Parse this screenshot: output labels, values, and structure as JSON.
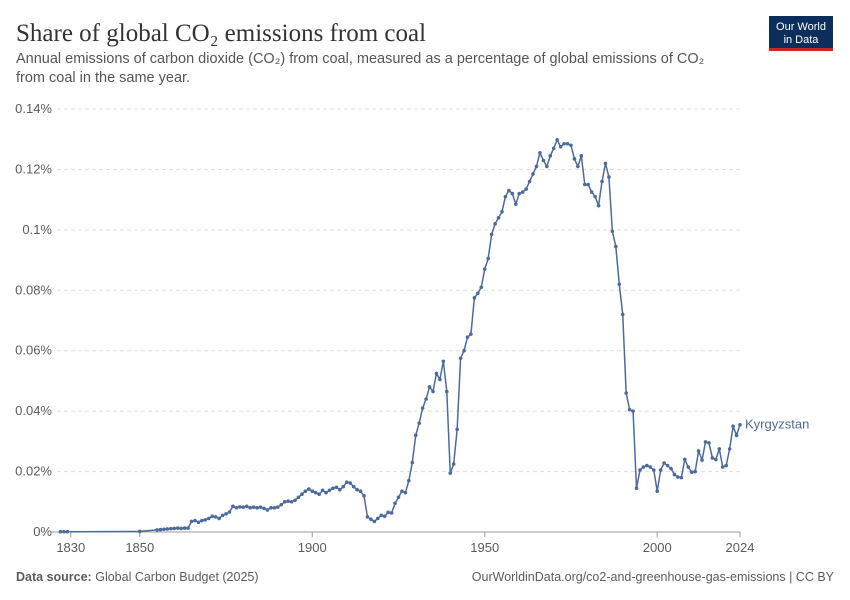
{
  "chart_data": {
    "type": "line",
    "title": "Share of global CO₂ emissions from coal",
    "subtitle": "Annual emissions of carbon dioxide (CO₂) from coal, measured as a percentage of global emissions of CO₂ from coal in the same year.",
    "logo": [
      "Our World",
      "in Data"
    ],
    "source_label": "Data source:",
    "source": "Global Carbon Budget (2025)",
    "footer_right": "OurWorldinData.org/co2-and-greenhouse-gas-emissions | CC BY",
    "x": [
      1827,
      1828,
      1829,
      1850,
      1855,
      1856,
      1857,
      1858,
      1859,
      1860,
      1861,
      1862,
      1863,
      1864,
      1865,
      1866,
      1867,
      1868,
      1869,
      1870,
      1871,
      1872,
      1873,
      1874,
      1875,
      1876,
      1877,
      1878,
      1879,
      1880,
      1881,
      1882,
      1883,
      1884,
      1885,
      1886,
      1887,
      1888,
      1889,
      1890,
      1891,
      1892,
      1893,
      1894,
      1895,
      1896,
      1897,
      1898,
      1899,
      1900,
      1901,
      1902,
      1903,
      1904,
      1905,
      1906,
      1907,
      1908,
      1909,
      1910,
      1911,
      1912,
      1913,
      1914,
      1915,
      1916,
      1917,
      1918,
      1919,
      1920,
      1921,
      1922,
      1923,
      1924,
      1925,
      1926,
      1927,
      1928,
      1929,
      1930,
      1931,
      1932,
      1933,
      1934,
      1935,
      1936,
      1937,
      1938,
      1939,
      1940,
      1941,
      1942,
      1943,
      1944,
      1945,
      1946,
      1947,
      1948,
      1949,
      1950,
      1951,
      1952,
      1953,
      1954,
      1955,
      1956,
      1957,
      1958,
      1959,
      1960,
      1961,
      1962,
      1963,
      1964,
      1965,
      1966,
      1967,
      1968,
      1969,
      1970,
      1971,
      1972,
      1973,
      1974,
      1975,
      1976,
      1977,
      1978,
      1979,
      1980,
      1981,
      1982,
      1983,
      1984,
      1985,
      1986,
      1987,
      1988,
      1989,
      1990,
      1991,
      1992,
      1993,
      1994,
      1995,
      1996,
      1997,
      1998,
      1999,
      2000,
      2001,
      2002,
      2003,
      2004,
      2005,
      2006,
      2007,
      2008,
      2009,
      2010,
      2011,
      2012,
      2013,
      2014,
      2015,
      2016,
      2017,
      2018,
      2019,
      2020,
      2021,
      2022,
      2023,
      2024
    ],
    "series": [
      {
        "name": "Kyrgyzstan",
        "color": "#4c6a9c",
        "values": [
          0.0001,
          0.0001,
          0.0001,
          0.0002,
          0.0007,
          0.0008,
          0.0009,
          0.001,
          0.0011,
          0.0012,
          0.0013,
          0.0012,
          0.0013,
          0.0013,
          0.0035,
          0.0038,
          0.0032,
          0.0038,
          0.004,
          0.0045,
          0.0052,
          0.005,
          0.0045,
          0.0055,
          0.006,
          0.0066,
          0.0085,
          0.008,
          0.0083,
          0.0082,
          0.0085,
          0.008,
          0.0082,
          0.008,
          0.0082,
          0.0078,
          0.0073,
          0.008,
          0.008,
          0.0082,
          0.009,
          0.01,
          0.0102,
          0.01,
          0.0105,
          0.0115,
          0.0125,
          0.0135,
          0.0142,
          0.0135,
          0.013,
          0.0125,
          0.0138,
          0.013,
          0.0138,
          0.0145,
          0.0148,
          0.014,
          0.015,
          0.0165,
          0.0162,
          0.015,
          0.014,
          0.0135,
          0.012,
          0.005,
          0.0042,
          0.0035,
          0.0045,
          0.0055,
          0.0052,
          0.0065,
          0.0063,
          0.0095,
          0.0115,
          0.0135,
          0.013,
          0.017,
          0.023,
          0.032,
          0.036,
          0.041,
          0.044,
          0.048,
          0.0465,
          0.0525,
          0.0505,
          0.0565,
          0.0465,
          0.0195,
          0.0225,
          0.034,
          0.0575,
          0.06,
          0.0645,
          0.0655,
          0.0775,
          0.079,
          0.081,
          0.087,
          0.0905,
          0.0985,
          0.102,
          0.104,
          0.106,
          0.111,
          0.113,
          0.112,
          0.1085,
          0.112,
          0.1125,
          0.1135,
          0.116,
          0.1185,
          0.121,
          0.1255,
          0.123,
          0.121,
          0.1245,
          0.127,
          0.1298,
          0.1275,
          0.1285,
          0.1285,
          0.128,
          0.1235,
          0.121,
          0.1245,
          0.115,
          0.115,
          0.1125,
          0.111,
          0.108,
          0.116,
          0.122,
          0.1175,
          0.0995,
          0.0945,
          0.082,
          0.072,
          0.046,
          0.0405,
          0.04,
          0.0145,
          0.0205,
          0.0215,
          0.022,
          0.0215,
          0.0205,
          0.0135,
          0.0205,
          0.0228,
          0.022,
          0.021,
          0.019,
          0.0182,
          0.018,
          0.024,
          0.0215,
          0.0198,
          0.02,
          0.0268,
          0.0238,
          0.0298,
          0.0295,
          0.0245,
          0.024,
          0.0275,
          0.0215,
          0.022,
          0.0275,
          0.035,
          0.032,
          0.0355
        ]
      }
    ],
    "xlim": [
      1826,
      2024
    ],
    "xticks": [
      1830,
      1850,
      1900,
      1950,
      2000,
      2024
    ],
    "ylim": [
      0,
      0.14
    ],
    "yticks": [
      {
        "value": 0,
        "label": "0%"
      },
      {
        "value": 0.02,
        "label": "0.02%"
      },
      {
        "value": 0.04,
        "label": "0.04%"
      },
      {
        "value": 0.06,
        "label": "0.06%"
      },
      {
        "value": 0.08,
        "label": "0.08%"
      },
      {
        "value": 0.1,
        "label": "0.1%"
      },
      {
        "value": 0.12,
        "label": "0.12%"
      },
      {
        "value": 0.14,
        "label": "0.14%"
      }
    ],
    "grid": true
  }
}
